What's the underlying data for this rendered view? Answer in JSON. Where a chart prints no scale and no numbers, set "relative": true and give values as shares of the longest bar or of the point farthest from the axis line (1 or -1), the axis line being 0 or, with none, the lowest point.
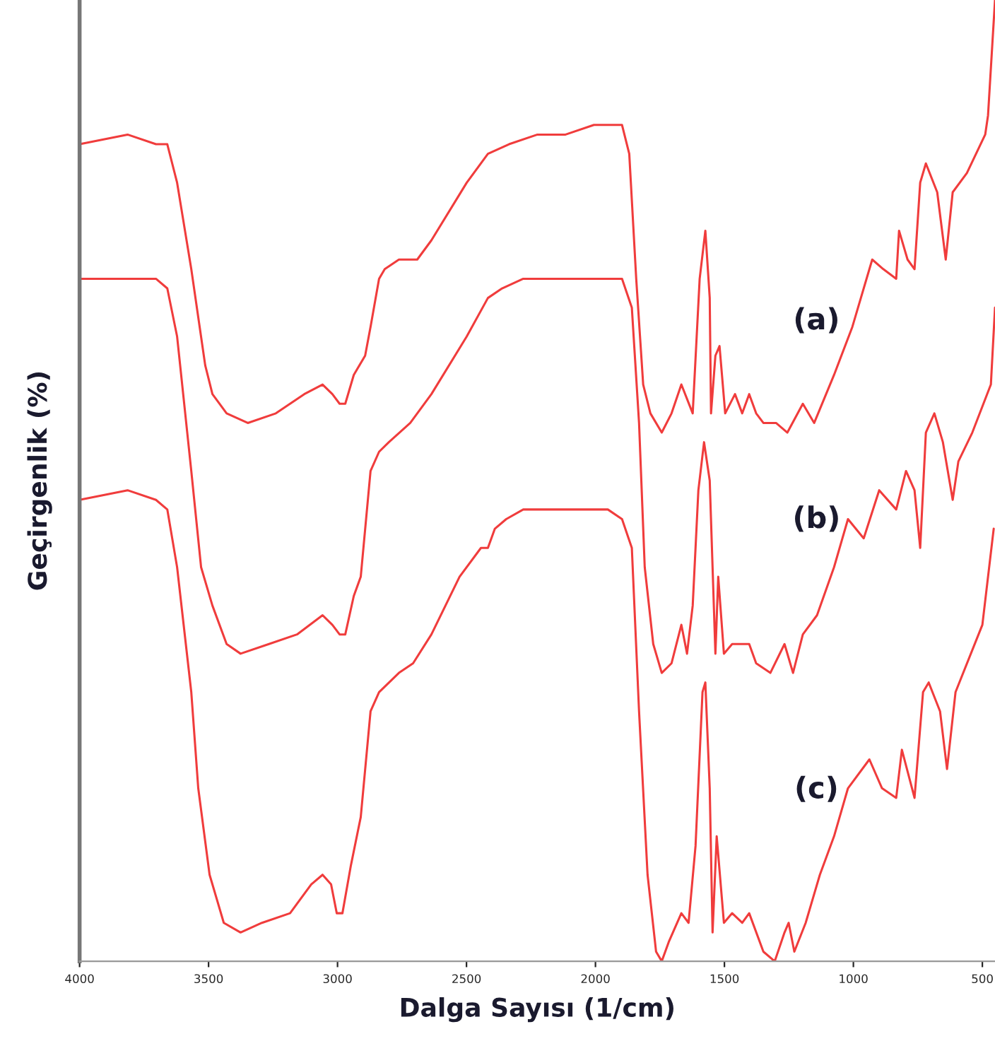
{
  "chart_data": {
    "type": "line",
    "relative": true,
    "xlabel": "Dalga Sayısı (1/cm)",
    "ylabel": "Geçirgenlik (%)",
    "xlim": [
      4000,
      451
    ],
    "xticks": [
      4000,
      3500,
      3000,
      2500,
      2000,
      1500,
      1000,
      500
    ],
    "tick_labels": "x",
    "grid": false,
    "legend": false,
    "marker": "none",
    "line_style": "solid",
    "series": [
      {
        "name": "(a)",
        "color": "#f03c3c",
        "x": [
          4000,
          3814,
          3704,
          3660,
          3622,
          3567,
          3513,
          3485,
          3430,
          3348,
          3239,
          3129,
          3058,
          3020,
          2992,
          2970,
          2937,
          2893,
          2872,
          2839,
          2817,
          2762,
          2691,
          2636,
          2499,
          2417,
          2335,
          2225,
          2116,
          2006,
          1941,
          1897,
          1869,
          1842,
          1815,
          1787,
          1743,
          1705,
          1667,
          1623,
          1596,
          1574,
          1557,
          1552,
          1535,
          1519,
          1497,
          1459,
          1431,
          1404,
          1377,
          1349,
          1300,
          1256,
          1196,
          1152,
          1075,
          1004,
          927,
          884,
          834,
          823,
          790,
          763,
          741,
          719,
          675,
          642,
          615,
          560,
          489,
          478,
          451
        ],
        "values": [
          0.85,
          0.86,
          0.85,
          0.85,
          0.81,
          0.72,
          0.62,
          0.59,
          0.57,
          0.56,
          0.57,
          0.59,
          0.6,
          0.59,
          0.58,
          0.58,
          0.61,
          0.63,
          0.66,
          0.71,
          0.72,
          0.73,
          0.73,
          0.75,
          0.81,
          0.84,
          0.85,
          0.86,
          0.86,
          0.87,
          0.87,
          0.87,
          0.84,
          0.71,
          0.6,
          0.57,
          0.55,
          0.57,
          0.6,
          0.57,
          0.71,
          0.76,
          0.69,
          0.57,
          0.63,
          0.64,
          0.57,
          0.59,
          0.57,
          0.59,
          0.57,
          0.56,
          0.56,
          0.55,
          0.58,
          0.56,
          0.61,
          0.66,
          0.73,
          0.72,
          0.71,
          0.76,
          0.73,
          0.72,
          0.81,
          0.83,
          0.8,
          0.73,
          0.8,
          0.82,
          0.86,
          0.88,
          1
        ]
      },
      {
        "name": "(b)",
        "color": "#f03c3c",
        "x": [
          4000,
          3814,
          3704,
          3660,
          3622,
          3567,
          3529,
          3485,
          3430,
          3376,
          3266,
          3157,
          3058,
          3020,
          2992,
          2970,
          2937,
          2910,
          2872,
          2839,
          2801,
          2718,
          2636,
          2499,
          2417,
          2362,
          2280,
          2116,
          1952,
          1897,
          1859,
          1831,
          1809,
          1776,
          1743,
          1705,
          1667,
          1645,
          1623,
          1601,
          1579,
          1557,
          1535,
          1524,
          1502,
          1470,
          1431,
          1404,
          1377,
          1322,
          1267,
          1234,
          1196,
          1141,
          1075,
          1021,
          960,
          900,
          834,
          796,
          763,
          741,
          719,
          686,
          653,
          615,
          593,
          539,
          467,
          451
        ],
        "values": [
          0.71,
          0.71,
          0.71,
          0.7,
          0.65,
          0.51,
          0.41,
          0.37,
          0.33,
          0.32,
          0.33,
          0.34,
          0.36,
          0.35,
          0.34,
          0.34,
          0.38,
          0.4,
          0.51,
          0.53,
          0.54,
          0.56,
          0.59,
          0.65,
          0.69,
          0.7,
          0.71,
          0.71,
          0.71,
          0.71,
          0.68,
          0.56,
          0.41,
          0.33,
          0.3,
          0.31,
          0.35,
          0.32,
          0.37,
          0.49,
          0.54,
          0.5,
          0.32,
          0.4,
          0.32,
          0.33,
          0.33,
          0.33,
          0.31,
          0.3,
          0.33,
          0.3,
          0.34,
          0.36,
          0.41,
          0.46,
          0.44,
          0.49,
          0.47,
          0.51,
          0.49,
          0.43,
          0.55,
          0.57,
          0.54,
          0.48,
          0.52,
          0.55,
          0.6,
          0.68
        ]
      },
      {
        "name": "(c)",
        "color": "#f03c3c",
        "x": [
          4000,
          3814,
          3704,
          3660,
          3622,
          3567,
          3540,
          3496,
          3441,
          3376,
          3293,
          3184,
          3102,
          3058,
          3025,
          3003,
          2981,
          2948,
          2910,
          2872,
          2839,
          2762,
          2707,
          2636,
          2527,
          2444,
          2417,
          2390,
          2346,
          2280,
          2225,
          1952,
          1897,
          1859,
          1831,
          1798,
          1765,
          1743,
          1716,
          1667,
          1639,
          1612,
          1585,
          1574,
          1557,
          1546,
          1530,
          1502,
          1470,
          1431,
          1404,
          1349,
          1305,
          1267,
          1251,
          1229,
          1185,
          1130,
          1075,
          1021,
          938,
          889,
          834,
          812,
          763,
          730,
          708,
          664,
          637,
          604,
          500,
          456
        ],
        "values": [
          0.48,
          0.49,
          0.48,
          0.47,
          0.41,
          0.28,
          0.18,
          0.09,
          0.04,
          0.03,
          0.04,
          0.05,
          0.08,
          0.09,
          0.08,
          0.05,
          0.05,
          0.1,
          0.15,
          0.26,
          0.28,
          0.3,
          0.31,
          0.34,
          0.4,
          0.43,
          0.43,
          0.45,
          0.46,
          0.47,
          0.47,
          0.47,
          0.46,
          0.43,
          0.26,
          0.09,
          0.01,
          0.0,
          0.02,
          0.05,
          0.04,
          0.12,
          0.28,
          0.29,
          0.18,
          0.03,
          0.13,
          0.04,
          0.05,
          0.04,
          0.05,
          0.01,
          0.0,
          0.03,
          0.04,
          0.01,
          0.04,
          0.09,
          0.13,
          0.18,
          0.21,
          0.18,
          0.17,
          0.22,
          0.17,
          0.28,
          0.29,
          0.26,
          0.2,
          0.28,
          0.35,
          0.45
        ]
      }
    ]
  }
}
